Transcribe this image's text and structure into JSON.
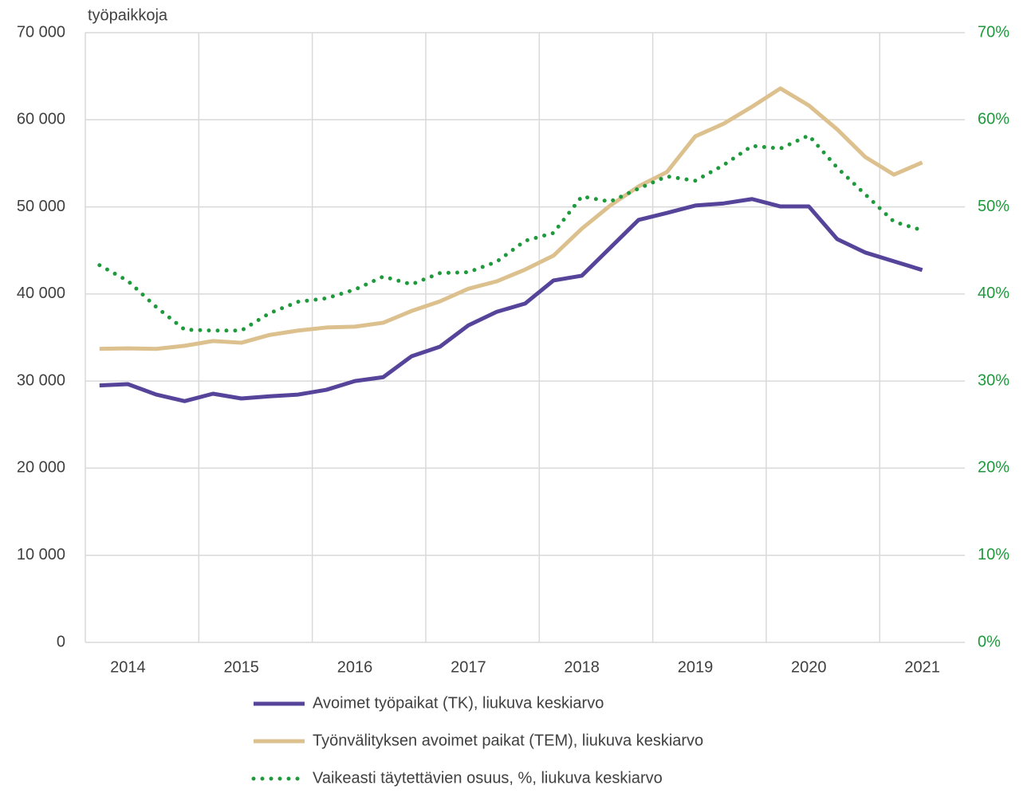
{
  "chart_data": {
    "type": "line",
    "y_axis_label": "työpaikkoja",
    "categories": [
      null,
      "2014",
      null,
      null,
      null,
      "2015",
      null,
      null,
      null,
      "2016",
      null,
      null,
      null,
      "2017",
      null,
      null,
      null,
      "2018",
      null,
      null,
      null,
      "2019",
      null,
      null,
      null,
      "2020",
      null,
      null,
      null,
      "2021",
      null
    ],
    "series": [
      {
        "name": "Avoimet työpaikat (TK), liukuva keskiarvo",
        "color": "#55449a",
        "style": "solid",
        "axis": "y",
        "values": [
          29500,
          29650,
          28450,
          27700,
          28550,
          28000,
          28250,
          28450,
          29000,
          30000,
          30450,
          32850,
          33950,
          36400,
          37950,
          38900,
          41550,
          42100,
          45300,
          48500,
          49300,
          50150,
          50400,
          50900,
          50050,
          50050,
          46300,
          44750,
          43750,
          42750,
          null
        ]
      },
      {
        "name": "Työnvälityksen avoimet paikat (TEM), liukuva keskiarvo",
        "color": "#dcc08e",
        "style": "solid",
        "axis": "y",
        "values": [
          33700,
          33750,
          33700,
          34050,
          34600,
          34400,
          35300,
          35800,
          36150,
          36250,
          36700,
          38050,
          39150,
          40600,
          41450,
          42800,
          44400,
          47500,
          50150,
          52350,
          54000,
          58100,
          59550,
          61500,
          63600,
          61650,
          58900,
          55700,
          53700,
          55100,
          null
        ]
      },
      {
        "name": "Vaikeasti täytettävien osuus, %, liukuva keskiarvo",
        "color": "#1e9a3c",
        "style": "dotted",
        "axis": "y2",
        "values": [
          43.3,
          41.5,
          38.5,
          35.9,
          35.8,
          35.8,
          37.8,
          39.1,
          39.5,
          40.5,
          42.0,
          41.1,
          42.4,
          42.5,
          43.7,
          46.1,
          47.0,
          51.2,
          50.6,
          52.1,
          53.5,
          53.0,
          54.8,
          57.0,
          56.7,
          58.2,
          54.5,
          51.4,
          48.3,
          47.3,
          null
        ]
      }
    ],
    "ylim": [
      0,
      70000
    ],
    "yticks": [
      0,
      {
        "value": 10000,
        "label": "10 000"
      },
      {
        "value": 20000,
        "label": "20 000"
      },
      {
        "value": 30000,
        "label": "30 000"
      },
      {
        "value": 40000,
        "label": "40 000"
      },
      {
        "value": 50000,
        "label": "50 000"
      },
      {
        "value": 60000,
        "label": "60 000"
      },
      {
        "value": 70000,
        "label": "70 000"
      }
    ],
    "y2lim": [
      0,
      70
    ],
    "y2ticks": [
      {
        "value": 0,
        "label": "0%"
      },
      {
        "value": 10,
        "label": "10%"
      },
      {
        "value": 20,
        "label": "20%"
      },
      {
        "value": 30,
        "label": "30%"
      },
      {
        "value": 40,
        "label": "40%"
      },
      {
        "value": 50,
        "label": "50%"
      },
      {
        "value": 60,
        "label": "60%"
      },
      {
        "value": 70,
        "label": "70%"
      }
    ],
    "y2_tick_color": "#1e9a3c",
    "grid": true
  }
}
